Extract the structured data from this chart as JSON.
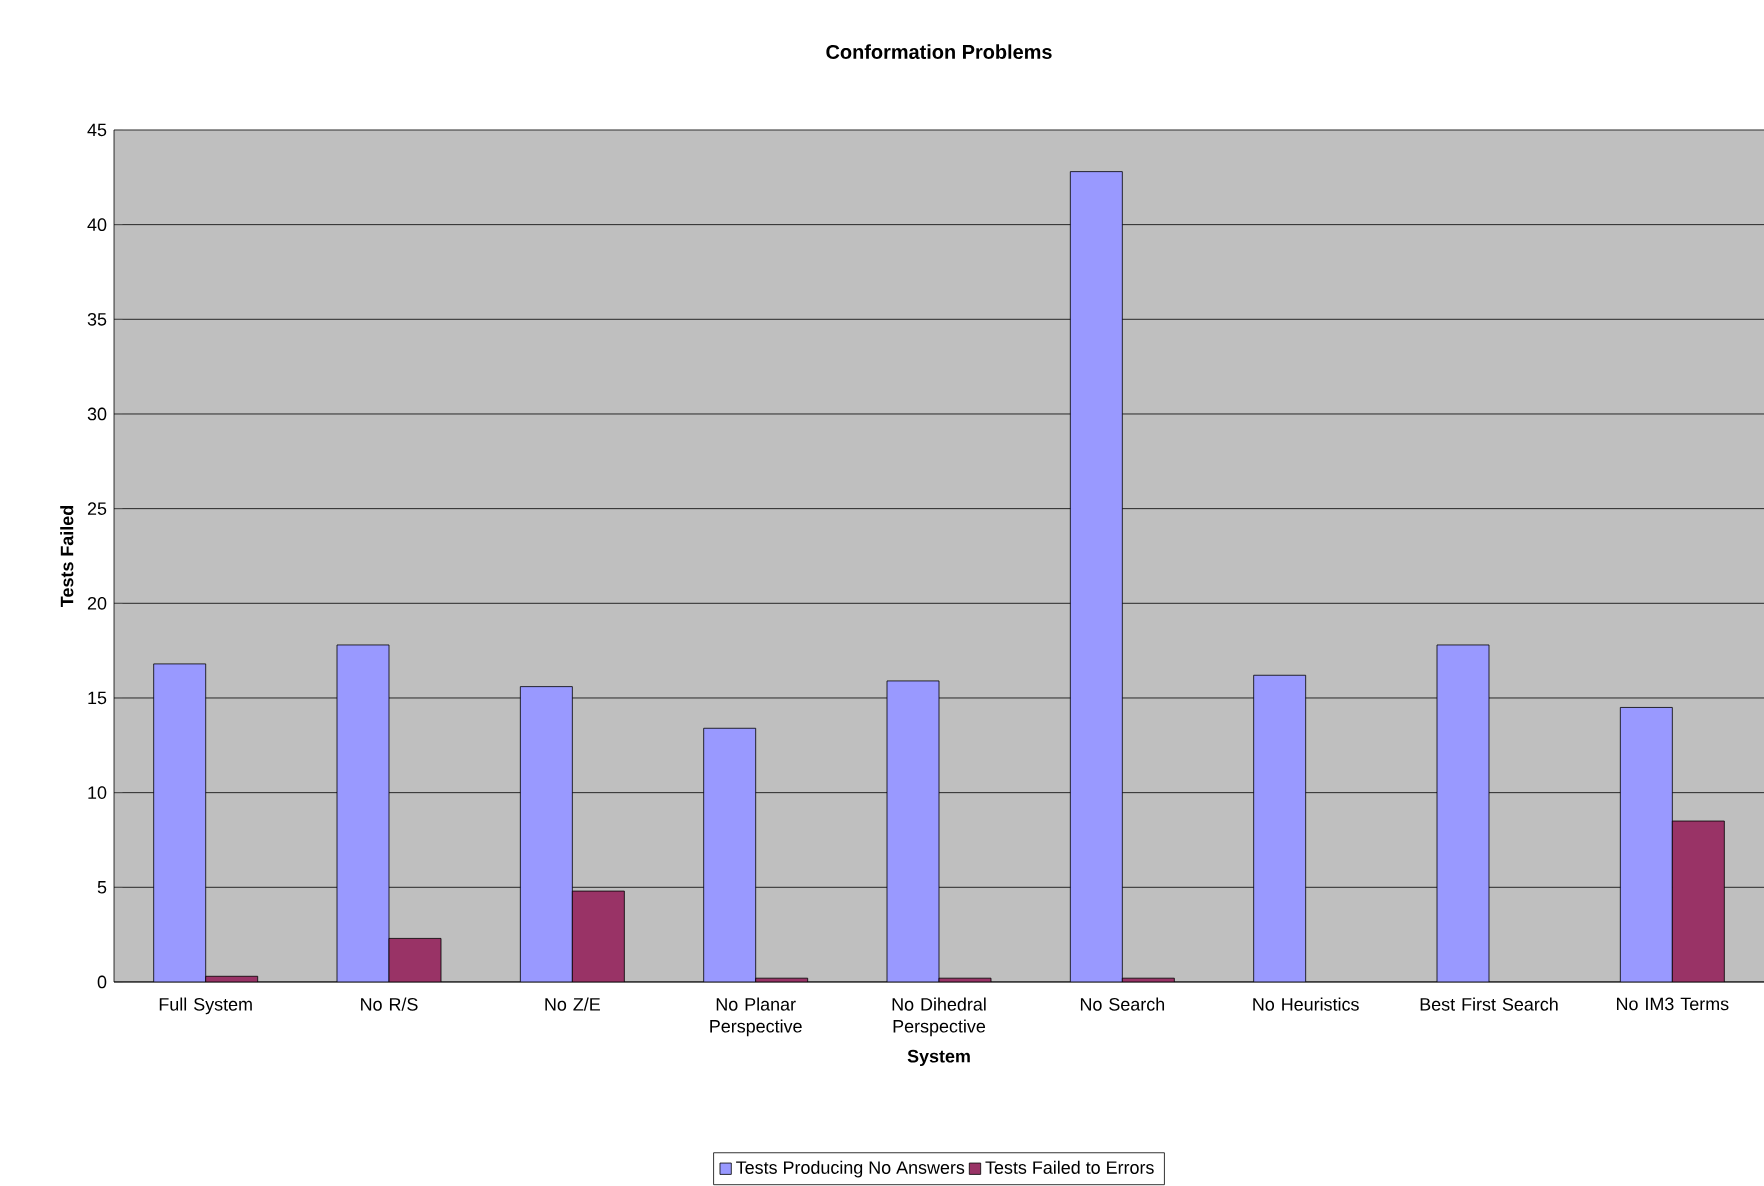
{
  "chart_data": {
    "type": "bar",
    "title": "Conformation Problems",
    "xlabel": "System",
    "ylabel": "Tests Failed",
    "categories": [
      "Full System",
      "No R/S",
      "No Z/E",
      "No Planar Perspective",
      "No Dihedral Perspective",
      "No Search",
      "No Heuristics",
      "Best First Search",
      "No IM3 Terms"
    ],
    "series": [
      {
        "name": "Tests Producing No Answers",
        "color": "#9999ff",
        "values": [
          16.8,
          17.8,
          15.6,
          13.4,
          15.9,
          42.8,
          16.2,
          17.8,
          14.5
        ]
      },
      {
        "name": "Tests Failed to Errors",
        "color": "#993366",
        "values": [
          0.3,
          2.3,
          4.8,
          0.2,
          0.2,
          0.2,
          null,
          null,
          8.5
        ]
      }
    ],
    "ylim": [
      0,
      45
    ],
    "yticks": [
      0,
      5,
      10,
      15,
      20,
      25,
      30,
      35,
      40,
      45
    ],
    "grid": "y",
    "legend": "bottom"
  }
}
